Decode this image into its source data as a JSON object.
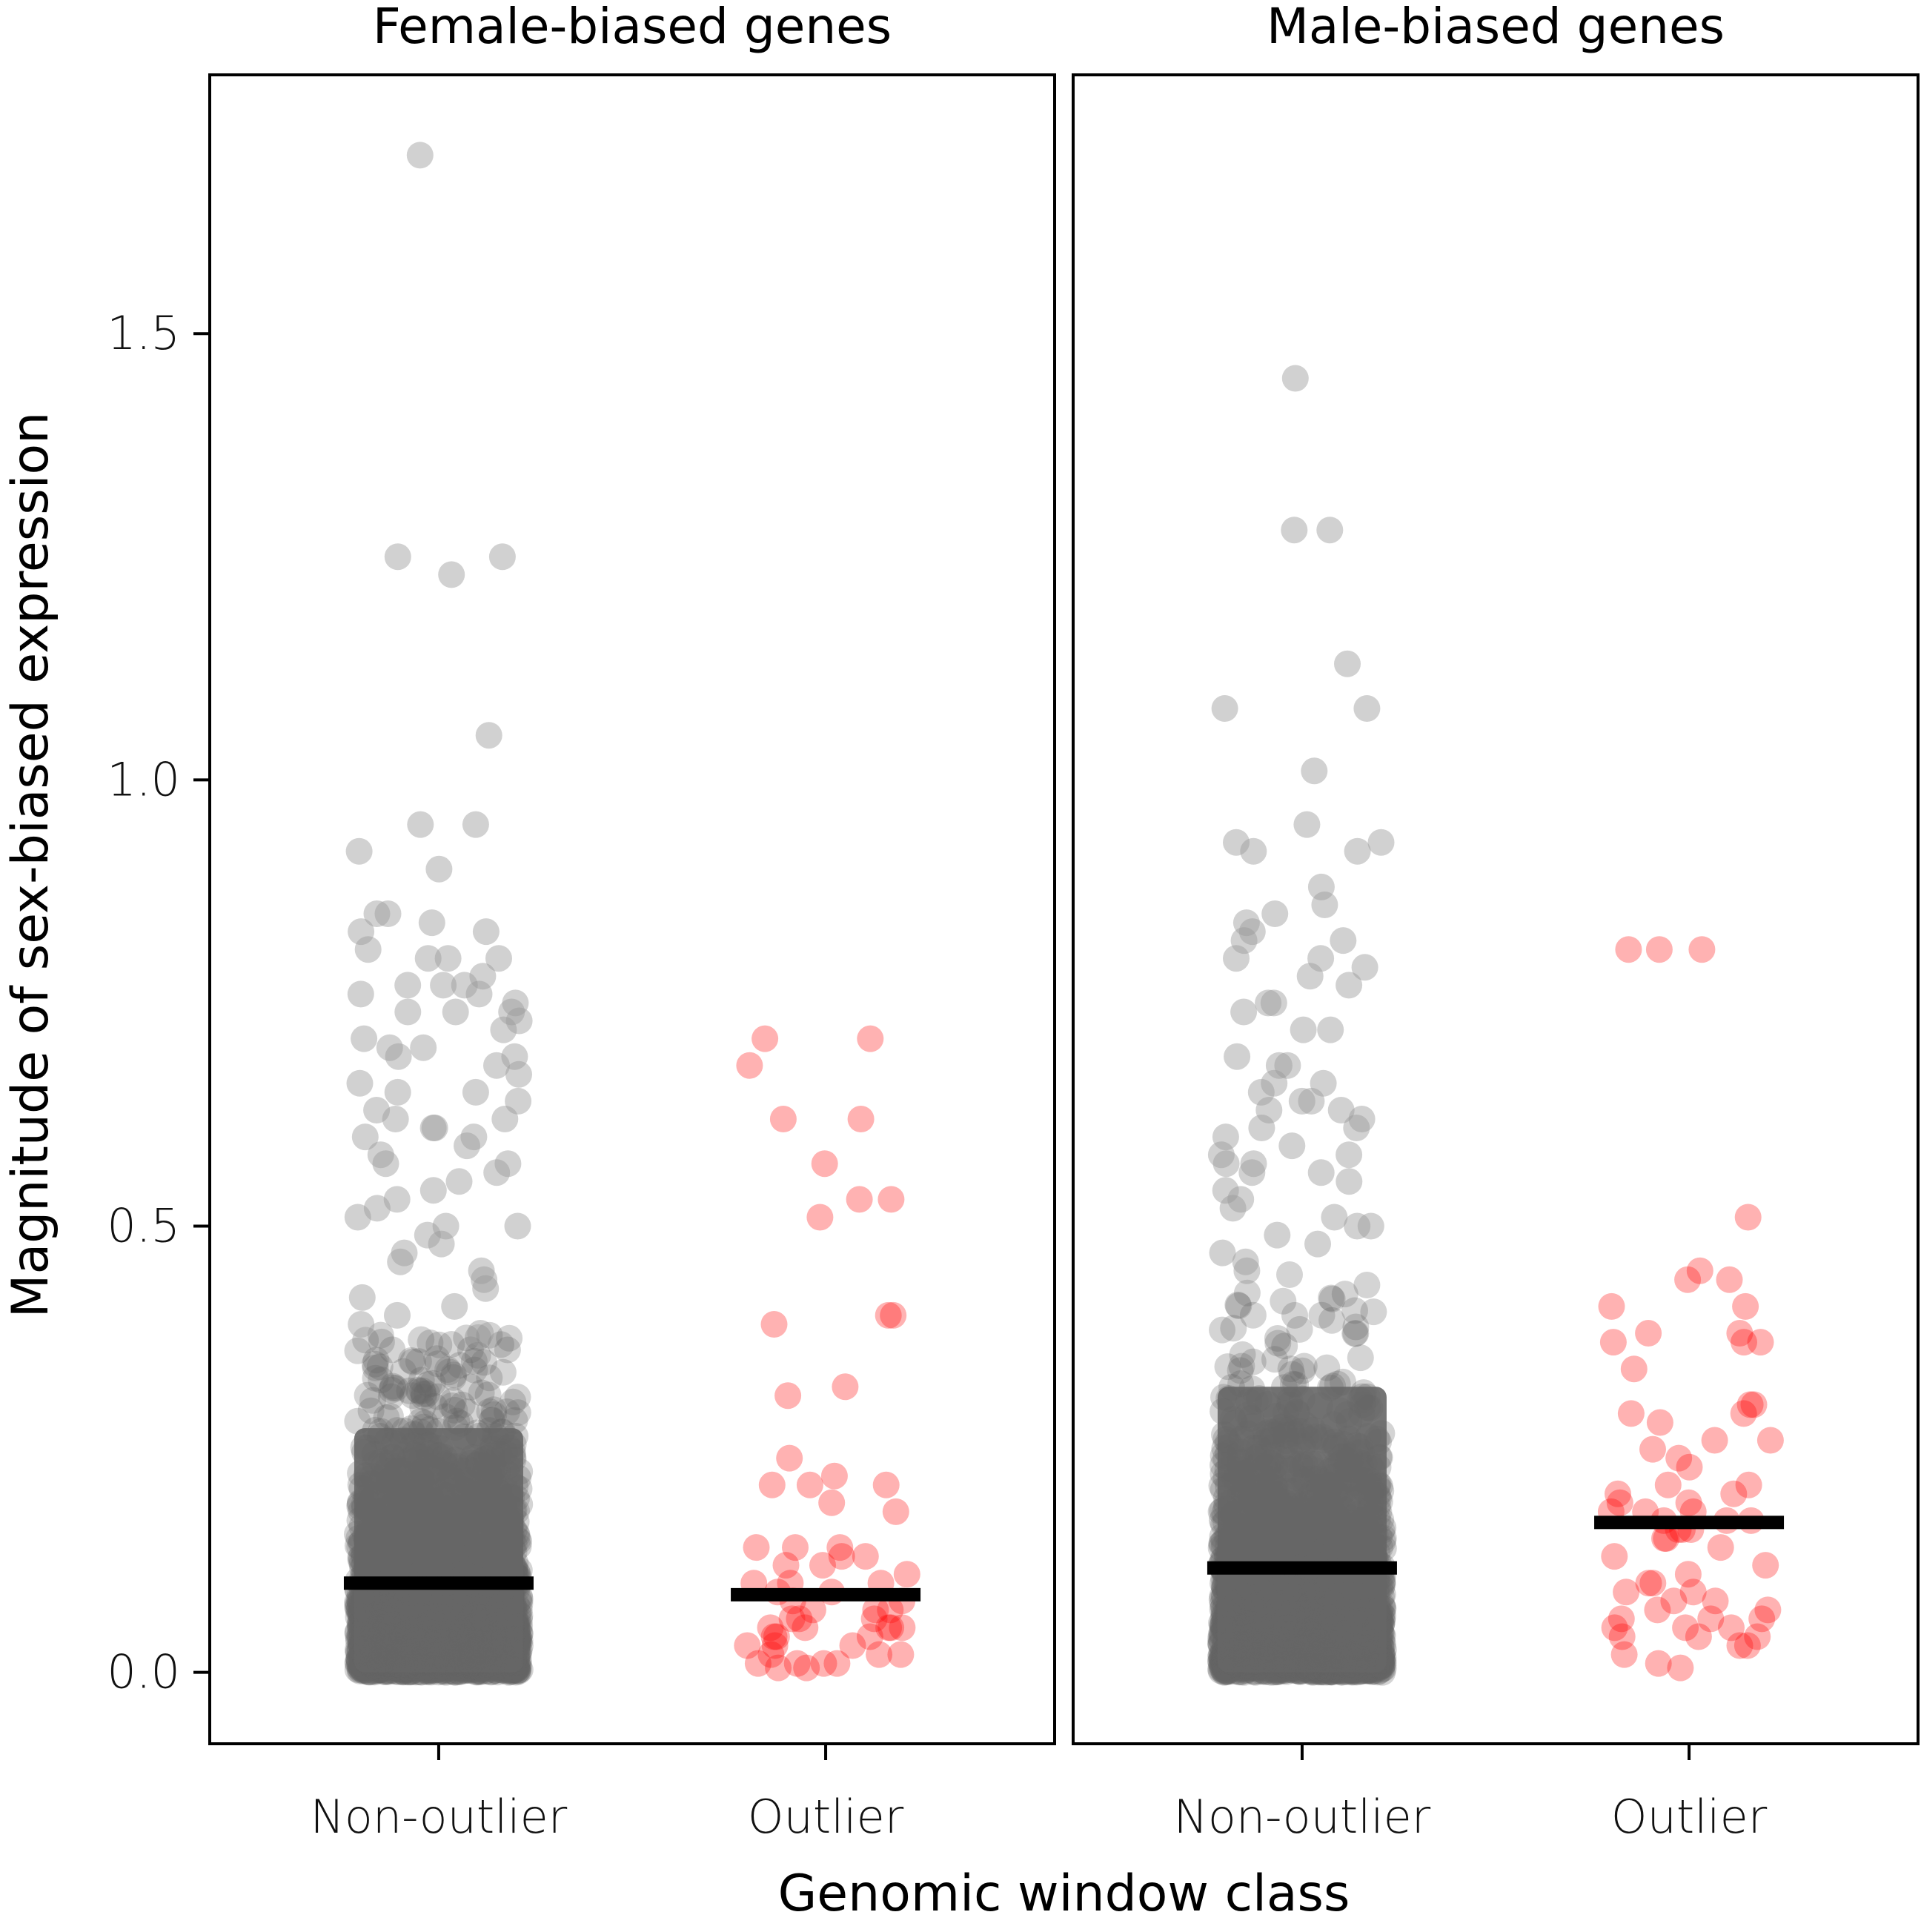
{
  "chart_data": {
    "type": "scatter",
    "subtype": "jittered strip plot with median bars",
    "xlabel": "Genomic window class",
    "ylabel": "Magnitude of sex-biased expression",
    "ylim": [
      -0.08,
      1.79
    ],
    "yticks": [
      0.0,
      0.5,
      1.0,
      1.5
    ],
    "ytick_labels": [
      "0.0",
      "0.5",
      "1.0",
      "1.5"
    ],
    "categories": [
      "Non-outlier",
      "Outlier"
    ],
    "grid": false,
    "legend": "none",
    "colors": {
      "Non-outlier": "#666666",
      "Outlier": "#ff0000",
      "median": "#000000"
    },
    "panels": [
      {
        "title": "Female-biased genes",
        "medians": {
          "Non-outlier": 0.1,
          "Outlier": 0.087
        },
        "series": [
          {
            "name": "Non-outlier",
            "note_dense_bulk": "thousands of overlapping points spanning 0.0 to about 0.38",
            "values": [
              1.7,
              1.25,
              1.25,
              1.23,
              1.05,
              0.95,
              0.95,
              0.92,
              0.9,
              0.85,
              0.85,
              0.84,
              0.83,
              0.83,
              0.81,
              0.8,
              0.8,
              0.8,
              0.78,
              0.77,
              0.77,
              0.77,
              0.76,
              0.76,
              0.75,
              0.74,
              0.74,
              0.74,
              0.73,
              0.72,
              0.71,
              0.7,
              0.7,
              0.69,
              0.69,
              0.68,
              0.67,
              0.66,
              0.65,
              0.65,
              0.64,
              0.63,
              0.62,
              0.62,
              0.61,
              0.61,
              0.6,
              0.6,
              0.59,
              0.58,
              0.57,
              0.57,
              0.56,
              0.55,
              0.54,
              0.53,
              0.52,
              0.51,
              0.5,
              0.5,
              0.49,
              0.48,
              0.47,
              0.46,
              0.45,
              0.44,
              0.43,
              0.42,
              0.41,
              0.4,
              0.39,
              0.38
            ]
          },
          {
            "name": "Outlier",
            "values": [
              0.71,
              0.71,
              0.68,
              0.62,
              0.62,
              0.57,
              0.53,
              0.53,
              0.51,
              0.4,
              0.4,
              0.39,
              0.32,
              0.31,
              0.24,
              0.22,
              0.21,
              0.21,
              0.21,
              0.19,
              0.18,
              0.14,
              0.14,
              0.14,
              0.13,
              0.13,
              0.12,
              0.12,
              0.11,
              0.1,
              0.1,
              0.1,
              0.09,
              0.09,
              0.08,
              0.08,
              0.07,
              0.07,
              0.07,
              0.06,
              0.06,
              0.06,
              0.05,
              0.05,
              0.05,
              0.05,
              0.05,
              0.04,
              0.04,
              0.04,
              0.03,
              0.03,
              0.03,
              0.02,
              0.02,
              0.02,
              0.01,
              0.01,
              0.01,
              0.01,
              0.005,
              0.005
            ]
          }
        ]
      },
      {
        "title": "Male-biased genes",
        "medians": {
          "Non-outlier": 0.117,
          "Outlier": 0.168
        },
        "series": [
          {
            "name": "Non-outlier",
            "note_dense_bulk": "thousands of overlapping points spanning 0.0 to about 0.45",
            "values": [
              1.45,
              1.28,
              1.28,
              1.13,
              1.08,
              1.08,
              1.01,
              0.95,
              0.93,
              0.93,
              0.92,
              0.92,
              0.88,
              0.86,
              0.85,
              0.84,
              0.83,
              0.82,
              0.82,
              0.8,
              0.8,
              0.79,
              0.78,
              0.77,
              0.75,
              0.75,
              0.74,
              0.72,
              0.72,
              0.69,
              0.68,
              0.68,
              0.66,
              0.66,
              0.65,
              0.64,
              0.64,
              0.63,
              0.63,
              0.62,
              0.61,
              0.61,
              0.6,
              0.59,
              0.58,
              0.58,
              0.57,
              0.57,
              0.56,
              0.56,
              0.55,
              0.54,
              0.53,
              0.52,
              0.51,
              0.5,
              0.5,
              0.49,
              0.48,
              0.47,
              0.46,
              0.45
            ]
          },
          {
            "name": "Outlier",
            "values": [
              0.81,
              0.81,
              0.81,
              0.51,
              0.45,
              0.44,
              0.44,
              0.41,
              0.41,
              0.38,
              0.38,
              0.37,
              0.37,
              0.37,
              0.34,
              0.3,
              0.3,
              0.29,
              0.29,
              0.28,
              0.26,
              0.26,
              0.25,
              0.24,
              0.23,
              0.21,
              0.21,
              0.2,
              0.2,
              0.19,
              0.19,
              0.18,
              0.18,
              0.18,
              0.17,
              0.17,
              0.17,
              0.16,
              0.16,
              0.16,
              0.15,
              0.15,
              0.14,
              0.13,
              0.12,
              0.11,
              0.1,
              0.1,
              0.09,
              0.09,
              0.08,
              0.08,
              0.07,
              0.07,
              0.06,
              0.06,
              0.06,
              0.05,
              0.05,
              0.05,
              0.04,
              0.04,
              0.04,
              0.03,
              0.03,
              0.02,
              0.01,
              0.005
            ]
          }
        ]
      }
    ]
  }
}
